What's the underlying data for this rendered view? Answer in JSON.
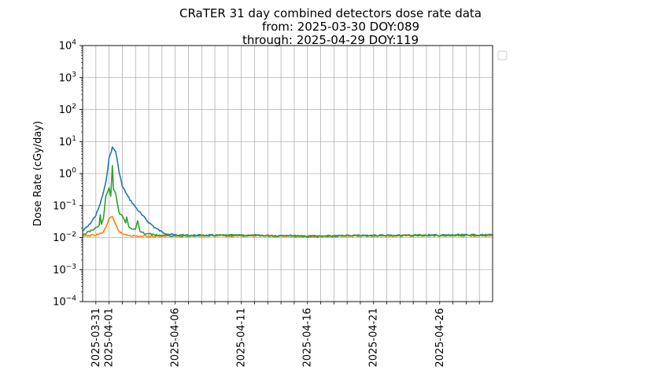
{
  "chart_data": {
    "type": "line",
    "title": [
      "CRaTER 31 day combined detectors dose rate data",
      "from: 2025-03-30 DOY:089",
      "through: 2025-04-29 DOY:119"
    ],
    "xlabel": "",
    "ylabel": "Dose Rate (cGy/day)",
    "yscale": "log",
    "ylim": [
      0.0001,
      10000
    ],
    "xlim": [
      "2025-03-30",
      "2025-04-30"
    ],
    "y_tick_labels": [
      {
        "value": 0.0001,
        "base": "10",
        "exp": "−4"
      },
      {
        "value": 0.001,
        "base": "10",
        "exp": "−3"
      },
      {
        "value": 0.01,
        "base": "10",
        "exp": "−2"
      },
      {
        "value": 0.1,
        "base": "10",
        "exp": "−1"
      },
      {
        "value": 1,
        "base": "10",
        "exp": "0"
      },
      {
        "value": 10,
        "base": "10",
        "exp": "1"
      },
      {
        "value": 100,
        "base": "10",
        "exp": "2"
      },
      {
        "value": 1000,
        "base": "10",
        "exp": "3"
      },
      {
        "value": 10000,
        "base": "10",
        "exp": "4"
      }
    ],
    "x_tick_labels": [
      "2025-03-31",
      "2025-04-01",
      "2025-04-06",
      "2025-04-11",
      "2025-04-16",
      "2025-04-21",
      "2025-04-26"
    ],
    "x_gridlines": [
      "2025-03-31",
      "2025-04-01",
      "2025-04-02",
      "2025-04-03",
      "2025-04-04",
      "2025-04-05",
      "2025-04-06",
      "2025-04-07",
      "2025-04-08",
      "2025-04-09",
      "2025-04-10",
      "2025-04-11",
      "2025-04-12",
      "2025-04-13",
      "2025-04-14",
      "2025-04-15",
      "2025-04-16",
      "2025-04-17",
      "2025-04-18",
      "2025-04-19",
      "2025-04-20",
      "2025-04-21",
      "2025-04-22",
      "2025-04-23",
      "2025-04-24",
      "2025-04-25",
      "2025-04-26",
      "2025-04-27",
      "2025-04-28",
      "2025-04-29"
    ],
    "grid": true,
    "legend": {
      "placement": "outside-upper-right",
      "entries": []
    },
    "series": [
      {
        "color": "#1f77b4",
        "x": [
          "2025-03-30",
          "2025-03-30T12:00",
          "2025-03-31",
          "2025-03-31T06:00",
          "2025-03-31T12:00",
          "2025-03-31T18:00",
          "2025-04-01",
          "2025-04-01T06:00",
          "2025-04-01T12:00",
          "2025-04-01T18:00",
          "2025-04-02",
          "2025-04-02T12:00",
          "2025-04-03",
          "2025-04-03T12:00",
          "2025-04-04",
          "2025-04-04T12:00",
          "2025-04-05",
          "2025-04-05T12:00",
          "2025-04-06",
          "2025-04-07",
          "2025-04-08",
          "2025-04-10",
          "2025-04-15",
          "2025-04-16",
          "2025-04-16T12:00",
          "2025-04-17",
          "2025-04-20",
          "2025-04-25",
          "2025-04-30"
        ],
        "y": [
          0.016,
          0.025,
          0.05,
          0.09,
          0.2,
          0.5,
          3,
          6.5,
          5,
          1.2,
          0.4,
          0.17,
          0.09,
          0.05,
          0.03,
          0.02,
          0.015,
          0.013,
          0.012,
          0.0118,
          0.0117,
          0.0117,
          0.0116,
          0.0108,
          0.0105,
          0.011,
          0.0115,
          0.0118,
          0.012
        ]
      },
      {
        "color": "#ff7f0e",
        "x": [
          "2025-03-30",
          "2025-03-31",
          "2025-03-31T12:00",
          "2025-03-31T18:00",
          "2025-04-01",
          "2025-04-01T06:00",
          "2025-04-01T12:00",
          "2025-04-01T18:00",
          "2025-04-02",
          "2025-04-02T12:00",
          "2025-04-03",
          "2025-04-04",
          "2025-04-06",
          "2025-04-10",
          "2025-04-16",
          "2025-04-17",
          "2025-04-20",
          "2025-04-30"
        ],
        "y": [
          0.011,
          0.012,
          0.014,
          0.02,
          0.04,
          0.043,
          0.025,
          0.016,
          0.013,
          0.012,
          0.011,
          0.011,
          0.0112,
          0.0115,
          0.011,
          0.0112,
          0.0115,
          0.0115
        ]
      },
      {
        "color": "#2ca02c",
        "x": [
          "2025-03-30",
          "2025-03-31",
          "2025-03-31T06:00",
          "2025-03-31T08:00",
          "2025-03-31T10:00",
          "2025-03-31T14:00",
          "2025-03-31T18:00",
          "2025-04-01",
          "2025-04-01T03:00",
          "2025-04-01T06:00",
          "2025-04-01T08:00",
          "2025-04-01T12:00",
          "2025-04-01T16:00",
          "2025-04-01T18:00",
          "2025-04-02",
          "2025-04-02T06:00",
          "2025-04-02T08:00",
          "2025-04-02T12:00",
          "2025-04-03",
          "2025-04-03T04:00",
          "2025-04-03T08:00",
          "2025-04-03T12:00",
          "2025-04-04",
          "2025-04-04T12:00",
          "2025-04-05",
          "2025-04-06",
          "2025-04-10",
          "2025-04-16",
          "2025-04-20",
          "2025-04-30"
        ],
        "y": [
          0.012,
          0.02,
          0.025,
          0.05,
          0.025,
          0.04,
          0.2,
          0.35,
          0.2,
          1.8,
          0.3,
          0.25,
          0.1,
          0.06,
          0.05,
          0.03,
          0.045,
          0.02,
          0.018,
          0.035,
          0.015,
          0.014,
          0.013,
          0.012,
          0.0115,
          0.0115,
          0.0117,
          0.011,
          0.0115,
          0.012
        ]
      }
    ]
  }
}
